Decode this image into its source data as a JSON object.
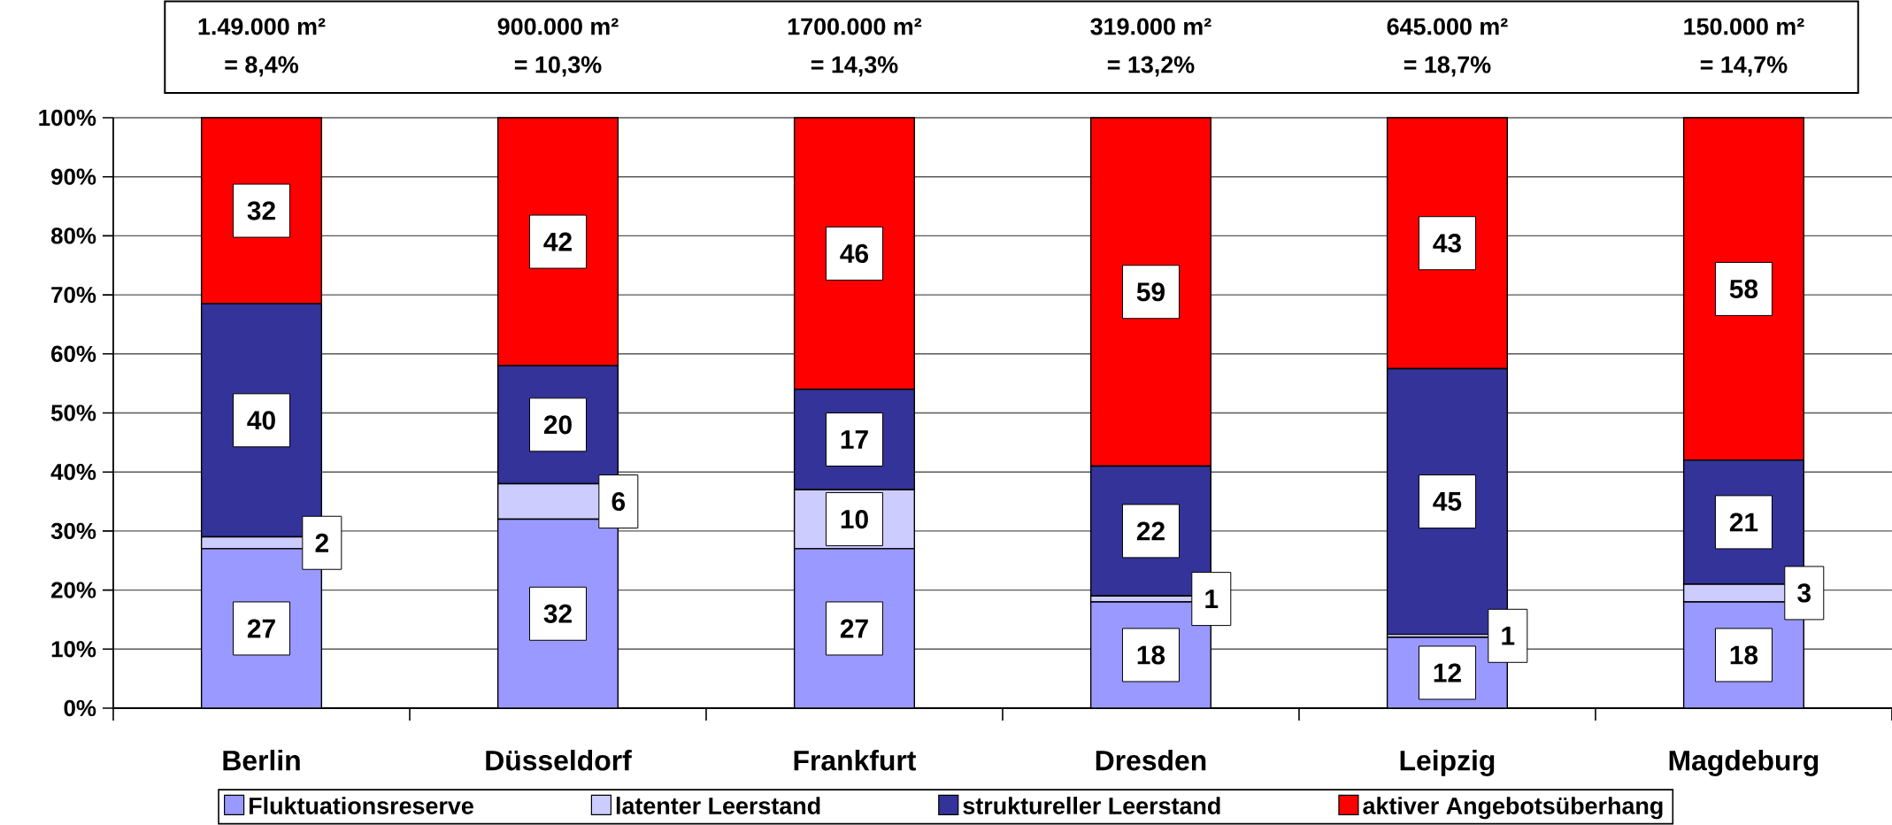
{
  "chart_data": {
    "type": "bar",
    "stacked": true,
    "categories": [
      "Berlin",
      "Düsseldorf",
      "Frankfurt",
      "Dresden",
      "Leipzig",
      "Magdeburg"
    ],
    "series": [
      {
        "name": "Fluktuationsreserve",
        "color": "#9999ff",
        "values": [
          27,
          32,
          27,
          18,
          12,
          18
        ],
        "value_labels": [
          "27",
          "32",
          "27",
          "18",
          "12",
          "18"
        ]
      },
      {
        "name": "latenter Leerstand",
        "color": "#ccccff",
        "values": [
          2,
          6,
          10,
          1,
          0.5,
          3
        ],
        "value_labels": [
          "2",
          "6",
          "10",
          "1",
          "1",
          "3"
        ]
      },
      {
        "name": "struktureller Leerstand",
        "color": "#333399",
        "values": [
          39.5,
          20,
          17,
          22,
          45,
          21
        ],
        "value_labels": [
          "40",
          "20",
          "17",
          "22",
          "45",
          "21"
        ]
      },
      {
        "name": "aktiver Angebotsüberhang",
        "color": "#ff0000",
        "values": [
          31.5,
          42,
          46,
          59,
          42.5,
          58
        ],
        "value_labels": [
          "32",
          "42",
          "46",
          "59",
          "43",
          "58"
        ]
      }
    ],
    "ylim": [
      0,
      100
    ],
    "yticks": [
      {
        "value": 0,
        "label": "0%"
      },
      {
        "value": 10,
        "label": "10%"
      },
      {
        "value": 20,
        "label": "20%"
      },
      {
        "value": 30,
        "label": "30%"
      },
      {
        "value": 40,
        "label": "40%"
      },
      {
        "value": 50,
        "label": "50%"
      },
      {
        "value": 60,
        "label": "60%"
      },
      {
        "value": 70,
        "label": "70%"
      },
      {
        "value": 80,
        "label": "80%"
      },
      {
        "value": 90,
        "label": "90%"
      },
      {
        "value": 100,
        "label": "100%"
      }
    ],
    "grid": "y",
    "legend": "bottom",
    "annotations": [
      "1.49.000 m²",
      "= 8,4%",
      "900.000 m²",
      "= 10,3%",
      "1700.000 m²",
      "= 14,3%",
      "319.000 m²",
      "= 13,2%",
      "645.000 m²",
      "= 18,7%",
      "150.000 m²",
      "= 14,7%"
    ]
  }
}
